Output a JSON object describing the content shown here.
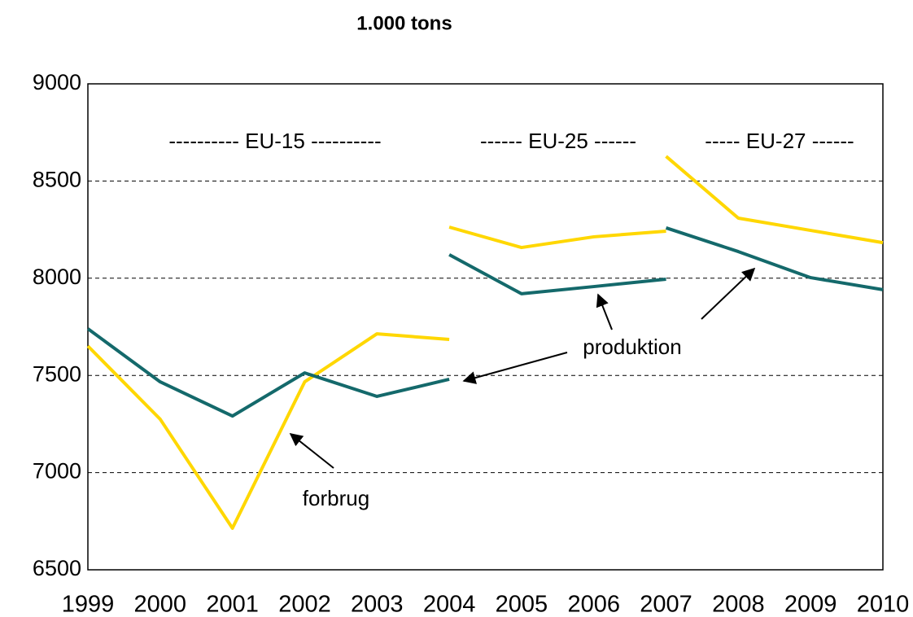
{
  "chart_data": {
    "type": "line",
    "title": "1.000 tons",
    "categories": [
      "1999",
      "2000",
      "2001",
      "2002",
      "2003",
      "2004",
      "2005",
      "2006",
      "2007",
      "2008",
      "2009",
      "2010"
    ],
    "series": [
      {
        "color": "#ffd700",
        "values": [
          7651,
          7275,
          6714,
          7467,
          7714,
          7685,
          null,
          null,
          null,
          null,
          null,
          null
        ]
      },
      {
        "color": "#ffd700",
        "values": [
          null,
          null,
          null,
          null,
          null,
          8263,
          8158,
          8213,
          8242,
          null,
          null,
          null
        ]
      },
      {
        "color": "#ffd700",
        "values": [
          null,
          null,
          null,
          null,
          null,
          null,
          null,
          null,
          8627,
          8309,
          8246,
          8183
        ]
      },
      {
        "color": "#14696b",
        "values": [
          7740,
          7467,
          7291,
          7513,
          7392,
          7480,
          null,
          null,
          null,
          null,
          null,
          null
        ]
      },
      {
        "color": "#14696b",
        "values": [
          null,
          null,
          null,
          null,
          null,
          8121,
          7920,
          7957,
          7995,
          null,
          null,
          null
        ]
      },
      {
        "color": "#14696b",
        "values": [
          null,
          null,
          null,
          null,
          null,
          null,
          null,
          null,
          8259,
          8137,
          8003,
          7941
        ]
      }
    ],
    "ylim": [
      6500,
      9000
    ],
    "yticks": [
      6500,
      7000,
      7500,
      8000,
      8500,
      9000
    ],
    "grid": true,
    "annotations": [
      "---------- EU-15 ----------",
      "------ EU-25 ------",
      "----- EU-27 ------",
      "produktion",
      "forbrug"
    ]
  }
}
